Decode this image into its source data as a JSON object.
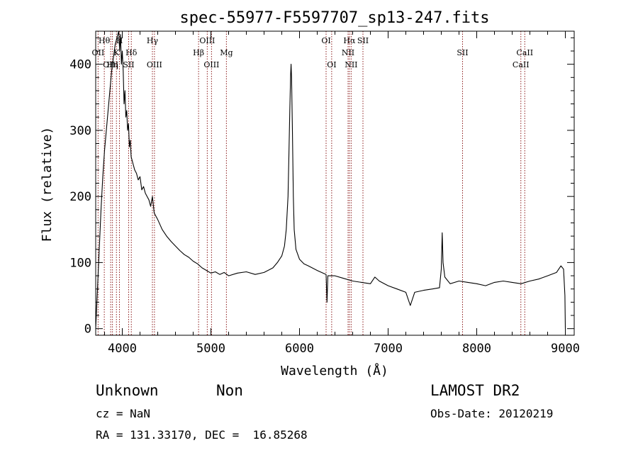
{
  "chart_data": {
    "type": "line",
    "title": "spec-55977-F5597707_sp13-247.fits",
    "xlabel": "Wavelength (Å)",
    "ylabel": "Flux (relative)",
    "xlim": [
      3700,
      9100
    ],
    "ylim": [
      -10,
      450
    ],
    "xticks": [
      4000,
      5000,
      6000,
      7000,
      8000,
      9000
    ],
    "yticks": [
      0,
      100,
      200,
      300,
      400
    ],
    "grid": false,
    "series": [
      {
        "color": "#000000",
        "points": [
          [
            3700,
            0
          ],
          [
            3720,
            60
          ],
          [
            3740,
            120
          ],
          [
            3760,
            180
          ],
          [
            3780,
            230
          ],
          [
            3800,
            270
          ],
          [
            3820,
            300
          ],
          [
            3840,
            330
          ],
          [
            3860,
            360
          ],
          [
            3880,
            390
          ],
          [
            3900,
            410
          ],
          [
            3920,
            430
          ],
          [
            3940,
            440
          ],
          [
            3960,
            450
          ],
          [
            3970,
            420
          ],
          [
            3980,
            445
          ],
          [
            3990,
            400
          ],
          [
            4000,
            420
          ],
          [
            4010,
            390
          ],
          [
            4020,
            340
          ],
          [
            4030,
            360
          ],
          [
            4040,
            320
          ],
          [
            4050,
            330
          ],
          [
            4060,
            300
          ],
          [
            4070,
            310
          ],
          [
            4080,
            275
          ],
          [
            4090,
            285
          ],
          [
            4100,
            260
          ],
          [
            4120,
            250
          ],
          [
            4140,
            240
          ],
          [
            4160,
            235
          ],
          [
            4180,
            225
          ],
          [
            4200,
            230
          ],
          [
            4220,
            210
          ],
          [
            4240,
            215
          ],
          [
            4260,
            205
          ],
          [
            4280,
            200
          ],
          [
            4300,
            195
          ],
          [
            4320,
            185
          ],
          [
            4340,
            200
          ],
          [
            4360,
            175
          ],
          [
            4380,
            170
          ],
          [
            4400,
            165
          ],
          [
            4450,
            150
          ],
          [
            4500,
            140
          ],
          [
            4550,
            132
          ],
          [
            4600,
            125
          ],
          [
            4650,
            118
          ],
          [
            4700,
            112
          ],
          [
            4750,
            108
          ],
          [
            4800,
            102
          ],
          [
            4850,
            98
          ],
          [
            4900,
            92
          ],
          [
            4950,
            88
          ],
          [
            5000,
            84
          ],
          [
            5050,
            86
          ],
          [
            5100,
            82
          ],
          [
            5150,
            85
          ],
          [
            5200,
            80
          ],
          [
            5300,
            84
          ],
          [
            5400,
            86
          ],
          [
            5500,
            82
          ],
          [
            5600,
            85
          ],
          [
            5700,
            92
          ],
          [
            5750,
            100
          ],
          [
            5800,
            110
          ],
          [
            5830,
            125
          ],
          [
            5850,
            150
          ],
          [
            5870,
            200
          ],
          [
            5880,
            260
          ],
          [
            5890,
            330
          ],
          [
            5900,
            385
          ],
          [
            5905,
            400
          ],
          [
            5910,
            380
          ],
          [
            5920,
            300
          ],
          [
            5930,
            200
          ],
          [
            5940,
            150
          ],
          [
            5960,
            120
          ],
          [
            6000,
            105
          ],
          [
            6050,
            98
          ],
          [
            6100,
            95
          ],
          [
            6200,
            88
          ],
          [
            6300,
            82
          ],
          [
            6310,
            40
          ],
          [
            6320,
            80
          ],
          [
            6400,
            80
          ],
          [
            6500,
            76
          ],
          [
            6600,
            72
          ],
          [
            6700,
            70
          ],
          [
            6800,
            68
          ],
          [
            6850,
            78
          ],
          [
            6900,
            72
          ],
          [
            7000,
            65
          ],
          [
            7100,
            60
          ],
          [
            7200,
            55
          ],
          [
            7250,
            35
          ],
          [
            7300,
            55
          ],
          [
            7400,
            58
          ],
          [
            7500,
            60
          ],
          [
            7580,
            62
          ],
          [
            7600,
            90
          ],
          [
            7610,
            145
          ],
          [
            7620,
            100
          ],
          [
            7640,
            78
          ],
          [
            7700,
            68
          ],
          [
            7800,
            72
          ],
          [
            7900,
            70
          ],
          [
            8000,
            68
          ],
          [
            8100,
            65
          ],
          [
            8200,
            70
          ],
          [
            8300,
            72
          ],
          [
            8400,
            70
          ],
          [
            8500,
            68
          ],
          [
            8600,
            72
          ],
          [
            8700,
            75
          ],
          [
            8800,
            80
          ],
          [
            8900,
            85
          ],
          [
            8950,
            95
          ],
          [
            8980,
            90
          ],
          [
            8995,
            50
          ],
          [
            9000,
            0
          ]
        ]
      }
    ],
    "lines": [
      {
        "label": "Hθ",
        "wavelength": 3797,
        "row": 1
      },
      {
        "label": "OII",
        "wavelength": 3727,
        "row": 2
      },
      {
        "label": "OIII",
        "wavelength": 3869,
        "row": 3
      },
      {
        "label": "Hη",
        "wavelength": 3889,
        "row": 3
      },
      {
        "label": "H",
        "wavelength": 3968,
        "row": 1
      },
      {
        "label": "K",
        "wavelength": 3934,
        "row": 2
      },
      {
        "label": "Hδ",
        "wavelength": 4102,
        "row": 2
      },
      {
        "label": "SII",
        "wavelength": 4072,
        "row": 3
      },
      {
        "label": "Hγ",
        "wavelength": 4340,
        "row": 1
      },
      {
        "label": "OIII",
        "wavelength": 4363,
        "row": 3
      },
      {
        "label": "Hβ",
        "wavelength": 4861,
        "row": 2
      },
      {
        "label": "OIII",
        "wavelength": 4959,
        "row": 1
      },
      {
        "label": "OIII",
        "wavelength": 5007,
        "row": 3
      },
      {
        "label": "Mg",
        "wavelength": 5175,
        "row": 2
      },
      {
        "label": "OI",
        "wavelength": 6300,
        "row": 1
      },
      {
        "label": "OI",
        "wavelength": 6363,
        "row": 3
      },
      {
        "label": "Hα",
        "wavelength": 6563,
        "row": 1
      },
      {
        "label": "NII",
        "wavelength": 6548,
        "row": 2
      },
      {
        "label": "NII",
        "wavelength": 6583,
        "row": 3
      },
      {
        "label": "SII",
        "wavelength": 6716,
        "row": 1
      },
      {
        "label": "SII",
        "wavelength": 7840,
        "row": 2
      },
      {
        "label": "CaII",
        "wavelength": 8542,
        "row": 2
      },
      {
        "label": "CaII",
        "wavelength": 8498,
        "row": 3
      }
    ]
  },
  "info": {
    "classification": "Unknown",
    "subclass": "Non",
    "survey": "LAMOST DR2",
    "cz": "cz = NaN",
    "obs_date": "Obs-Date: 20120219",
    "coords": "RA = 131.33170, DEC =  16.85268"
  },
  "colors": {
    "line_marker": "#8b1a1a"
  }
}
